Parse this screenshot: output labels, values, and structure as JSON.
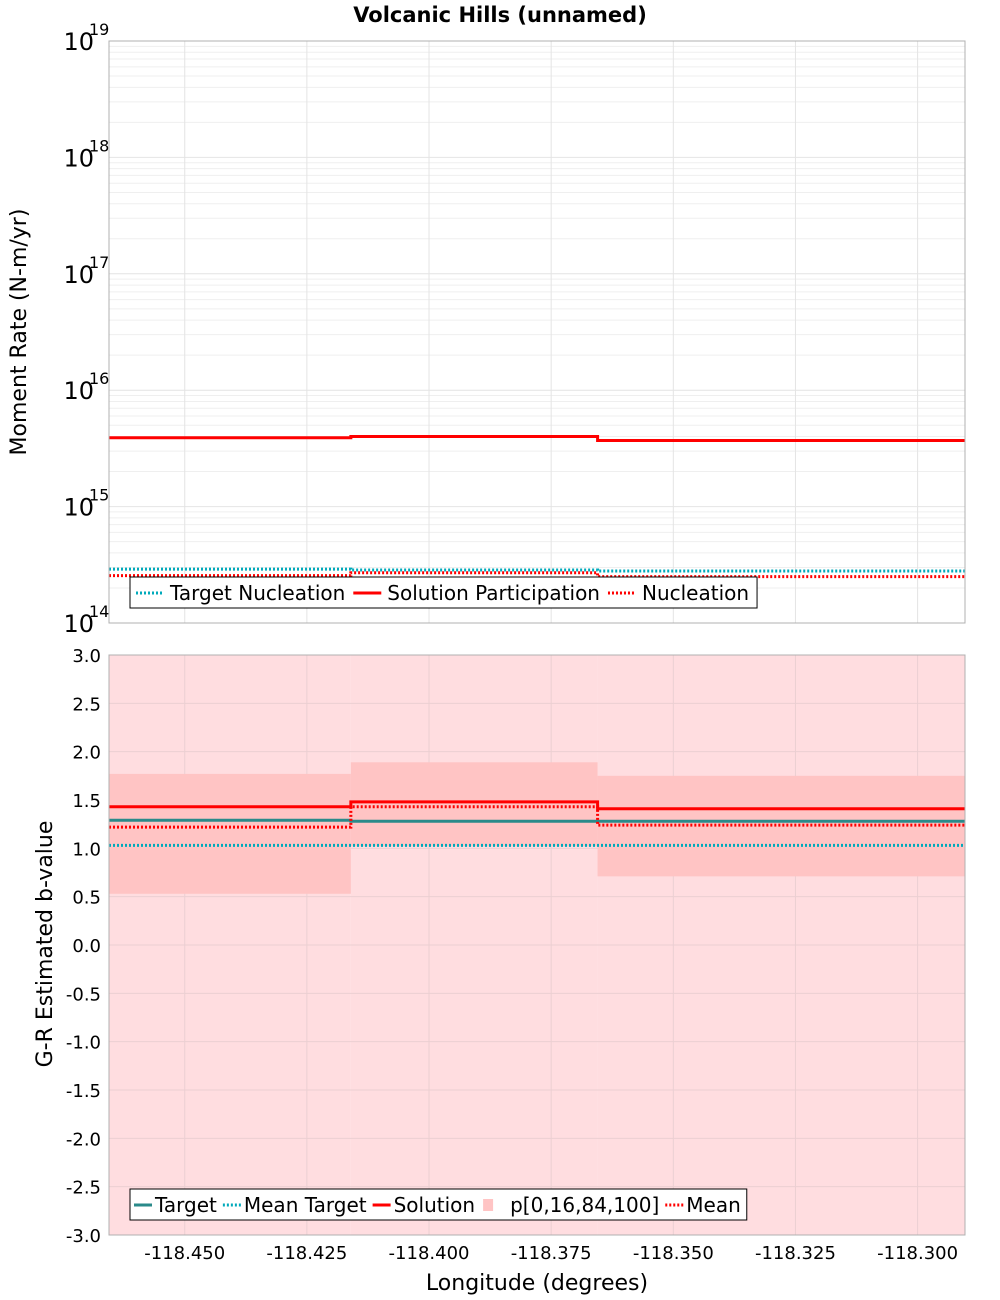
{
  "title": "Volcanic Hills (unnamed)",
  "colors": {
    "red": "#ff0000",
    "teal_dotted": "#00aabb",
    "teal_solid": "#2a8a8a",
    "band_outer": "#ffdde0",
    "band_inner": "#ffc4c4",
    "grid": "#e4e4e4",
    "frame": "#b0b0b0"
  },
  "chart_data": [
    {
      "type": "line",
      "name": "moment-rate-panel",
      "ylabel": "Moment Rate (N-m/yr)",
      "yscale": "log",
      "ylim": [
        100000000000000.0,
        1e+19
      ],
      "xlim": [
        -118.4655,
        -118.2903
      ],
      "ytick_labels": [
        {
          "base": "10",
          "exp": "14",
          "value": 100000000000000.0
        },
        {
          "base": "10",
          "exp": "15",
          "value": 1000000000000000.0
        },
        {
          "base": "10",
          "exp": "16",
          "value": 1e+16
        },
        {
          "base": "10",
          "exp": "17",
          "value": 1e+17
        },
        {
          "base": "10",
          "exp": "18",
          "value": 1e+18
        },
        {
          "base": "10",
          "exp": "19",
          "value": 1e+19
        }
      ],
      "x_edges": [
        -118.4655,
        -118.416,
        -118.3655,
        -118.2903
      ],
      "grid": true,
      "legend_position": "bottom-left",
      "series": [
        {
          "name": "Target Nucleation",
          "style": "dotted",
          "color": "#00aabb",
          "values": [
            290000000000000.0,
            285000000000000.0,
            280000000000000.0
          ]
        },
        {
          "name": "Solution Participation",
          "style": "solid",
          "color": "#ff0000",
          "values": [
            3900000000000000.0,
            4000000000000000.0,
            3700000000000000.0
          ]
        },
        {
          "name": "Nucleation",
          "style": "dotted",
          "color": "#ff0000",
          "values": [
            255000000000000.0,
            270000000000000.0,
            250000000000000.0
          ]
        }
      ]
    },
    {
      "type": "line",
      "name": "b-value-panel",
      "ylabel": "G-R Estimated b-value",
      "xlabel": "Longitude (degrees)",
      "ylim": [
        -3.0,
        3.0
      ],
      "xlim": [
        -118.4655,
        -118.2903
      ],
      "yticks": [
        "3.0",
        "2.5",
        "2.0",
        "1.5",
        "1.0",
        "0.5",
        "0.0",
        "-0.5",
        "-1.0",
        "-1.5",
        "-2.0",
        "-2.5",
        "-3.0"
      ],
      "ytick_values": [
        3.0,
        2.5,
        2.0,
        1.5,
        1.0,
        0.5,
        0.0,
        -0.5,
        -1.0,
        -1.5,
        -2.0,
        -2.5,
        -3.0
      ],
      "xticks": [
        "-118.450",
        "-118.425",
        "-118.400",
        "-118.375",
        "-118.350",
        "-118.325",
        "-118.300"
      ],
      "xtick_values": [
        -118.45,
        -118.425,
        -118.4,
        -118.375,
        -118.35,
        -118.325,
        -118.3
      ],
      "x_edges": [
        -118.4655,
        -118.416,
        -118.3655,
        -118.2903
      ],
      "grid": true,
      "legend_position": "bottom-left",
      "band_outer": {
        "name": "p[0,16,84,100]",
        "low": [
          -3.0,
          -3.0,
          -3.0
        ],
        "high": [
          3.0,
          3.0,
          3.0
        ]
      },
      "band_inner": {
        "low": [
          0.53,
          1.02,
          0.71
        ],
        "high": [
          1.77,
          1.89,
          1.75
        ]
      },
      "series": [
        {
          "name": "Target",
          "style": "solid",
          "color": "#2a8a8a",
          "values": [
            1.29,
            1.28,
            1.28
          ]
        },
        {
          "name": "Mean Target",
          "style": "dotted",
          "color": "#00aabb",
          "values": [
            1.03,
            1.03,
            1.03
          ]
        },
        {
          "name": "Solution",
          "style": "solid",
          "color": "#ff0000",
          "values": [
            1.43,
            1.48,
            1.41
          ]
        },
        {
          "name": "Mean",
          "style": "dotted",
          "color": "#ff0000",
          "values": [
            1.22,
            1.43,
            1.24
          ]
        }
      ]
    }
  ]
}
